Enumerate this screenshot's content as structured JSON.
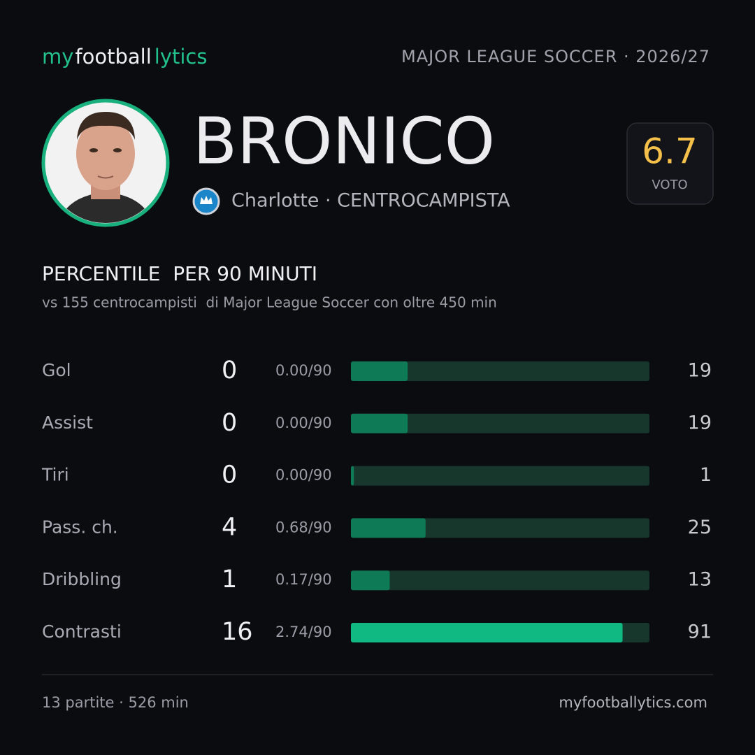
{
  "header": {
    "brand": {
      "part1": "my",
      "part2": "football",
      "part3": "lytics"
    },
    "league": "MAJOR LEAGUE SOCCER · 2026/27"
  },
  "player": {
    "name": "BRONICO",
    "team_role": "Charlotte · CENTROCAMPISTA",
    "rating": "6.7",
    "rating_label": "VOTO"
  },
  "section": {
    "title": "PERCENTILE  PER 90 MINUTI",
    "subtitle": "vs 155 centrocampisti  di Major League Soccer con oltre 450 min"
  },
  "stats": {
    "xlim": [
      0,
      100
    ],
    "track_color": "#17372c",
    "rows": [
      {
        "label": "Gol",
        "total": 0,
        "per90": "0.00/90",
        "percentile": 19,
        "color": "#0e7a56"
      },
      {
        "label": "Assist",
        "total": 0,
        "per90": "0.00/90",
        "percentile": 19,
        "color": "#0e7a56"
      },
      {
        "label": "Tiri",
        "total": 0,
        "per90": "0.00/90",
        "percentile": 1,
        "color": "#0e7a56"
      },
      {
        "label": "Pass. ch.",
        "total": 4,
        "per90": "0.68/90",
        "percentile": 25,
        "color": "#0e7a56"
      },
      {
        "label": "Dribbling",
        "total": 1,
        "per90": "0.17/90",
        "percentile": 13,
        "color": "#0e7a56"
      },
      {
        "label": "Contrasti",
        "total": 16,
        "per90": "2.74/90",
        "percentile": 91,
        "color": "#10b981"
      }
    ]
  },
  "footer": {
    "summary": "13 partite · 526 min",
    "site": "myfootballytics.com"
  }
}
